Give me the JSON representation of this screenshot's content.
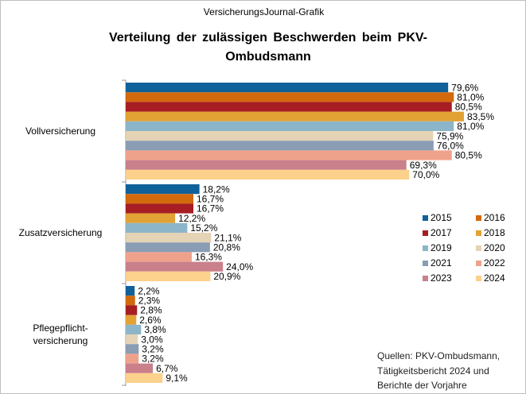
{
  "chart_data": {
    "type": "bar",
    "orientation": "horizontal",
    "header": "VersicherungsJournal-Grafik",
    "title": "Verteilung der zulässigen Beschwerden beim PKV-Ombudsmann",
    "source": "Quellen: PKV-Ombudsmann,\nTätigkeitsbericht 2024 und\nBerichte der Vorjahre",
    "categories": [
      "Vollversicherung",
      "Zusatzversicherung",
      "Pflegepflicht-\nversicherung"
    ],
    "legend": "right",
    "series": [
      {
        "name": "2015",
        "color": "#10609a",
        "values": [
          79.6,
          18.2,
          2.2
        ],
        "value_labels": [
          "79,6%",
          "18,2%",
          "2,2%"
        ]
      },
      {
        "name": "2016",
        "color": "#d2690c",
        "values": [
          81.0,
          16.7,
          2.3
        ],
        "value_labels": [
          "81,0%",
          "16,7%",
          "2,3%"
        ]
      },
      {
        "name": "2017",
        "color": "#a61d24",
        "values": [
          80.5,
          16.7,
          2.8
        ],
        "value_labels": [
          "80,5%",
          "16,7%",
          "2,8%"
        ]
      },
      {
        "name": "2018",
        "color": "#e2a234",
        "values": [
          83.5,
          12.2,
          2.6
        ],
        "value_labels": [
          "83,5%",
          "12,2%",
          "2,6%"
        ]
      },
      {
        "name": "2019",
        "color": "#8cb5c9",
        "values": [
          81.0,
          15.2,
          3.8
        ],
        "value_labels": [
          "81,0%",
          "15,2%",
          "3,8%"
        ]
      },
      {
        "name": "2020",
        "color": "#e5d3b5",
        "values": [
          75.9,
          21.1,
          3.0
        ],
        "value_labels": [
          "75,9%",
          "21,1%",
          "3,0%"
        ]
      },
      {
        "name": "2021",
        "color": "#8a9db5",
        "values": [
          76.0,
          20.8,
          3.2
        ],
        "value_labels": [
          "76,0%",
          "20,8%",
          "3,2%"
        ]
      },
      {
        "name": "2022",
        "color": "#efa28b",
        "values": [
          80.5,
          16.3,
          3.2
        ],
        "value_labels": [
          "80,5%",
          "16,3%",
          "3,2%"
        ]
      },
      {
        "name": "2023",
        "color": "#c9808b",
        "values": [
          69.3,
          24.0,
          6.7
        ],
        "value_labels": [
          "69,3%",
          "24,0%",
          "6,7%"
        ]
      },
      {
        "name": "2024",
        "color": "#fcd18b",
        "values": [
          70.0,
          20.9,
          9.1
        ],
        "value_labels": [
          "70,0%",
          "20,9%",
          "9,1%"
        ]
      }
    ]
  }
}
